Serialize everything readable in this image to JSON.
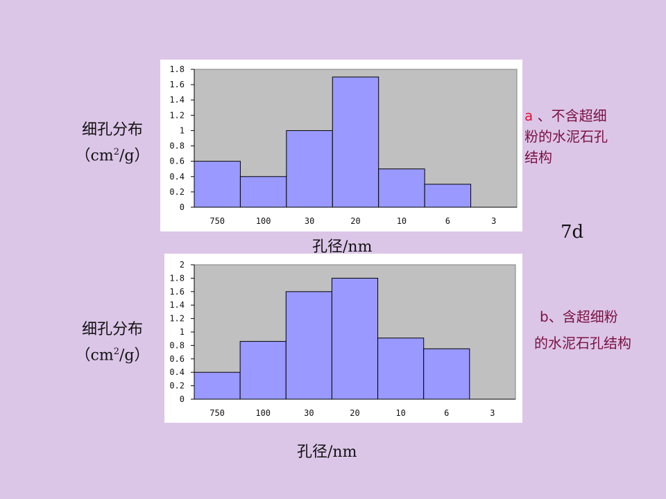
{
  "chart_data": [
    {
      "type": "bar",
      "ylabel_line1": "细孔分布",
      "ylabel_unit_pre": "（cm",
      "ylabel_unit_sup": "2",
      "ylabel_unit_post": "/g）",
      "xlabel": "孔径/nm",
      "categories": [
        "750",
        "100",
        "30",
        "20",
        "10",
        "6",
        "3"
      ],
      "values": [
        0.6,
        0.4,
        1.0,
        1.7,
        0.5,
        0.3,
        0
      ],
      "ylim": [
        0,
        1.8
      ],
      "yticks": [
        "0",
        "0.2",
        "0.4",
        "0.6",
        "0.8",
        "1",
        "1.2",
        "1.4",
        "1.6",
        "1.8"
      ],
      "grid": false,
      "plot_bg": "#c0c0c0",
      "bar_color": "#9999ff",
      "annotation_letter": "a",
      "annotation_text_1": "、不含超细",
      "annotation_text_2": "粉的水泥石孔",
      "annotation_text_3": "结构"
    },
    {
      "type": "bar",
      "ylabel_line1": "细孔分布",
      "ylabel_unit_pre": "（cm",
      "ylabel_unit_sup": "2",
      "ylabel_unit_post": "/g）",
      "xlabel": "孔径/nm",
      "categories": [
        "750",
        "100",
        "30",
        "20",
        "10",
        "6",
        "3"
      ],
      "values": [
        0.4,
        0.86,
        1.6,
        1.8,
        0.91,
        0.75,
        0
      ],
      "ylim": [
        0,
        2
      ],
      "yticks": [
        "0",
        "0.2",
        "0.4",
        "0.6",
        "0.8",
        "1",
        "1.2",
        "1.4",
        "1.6",
        "1.8",
        "2"
      ],
      "grid": false,
      "plot_bg": "#c0c0c0",
      "bar_color": "#9999ff",
      "annotation_text_1": "b、含超细粉",
      "annotation_text_2": "的水泥石孔结构"
    }
  ],
  "day_label": "7d",
  "colors": {
    "background": "#dcc6e8",
    "annotation": "#7a1040",
    "annotation_letter": "#e0163c"
  }
}
